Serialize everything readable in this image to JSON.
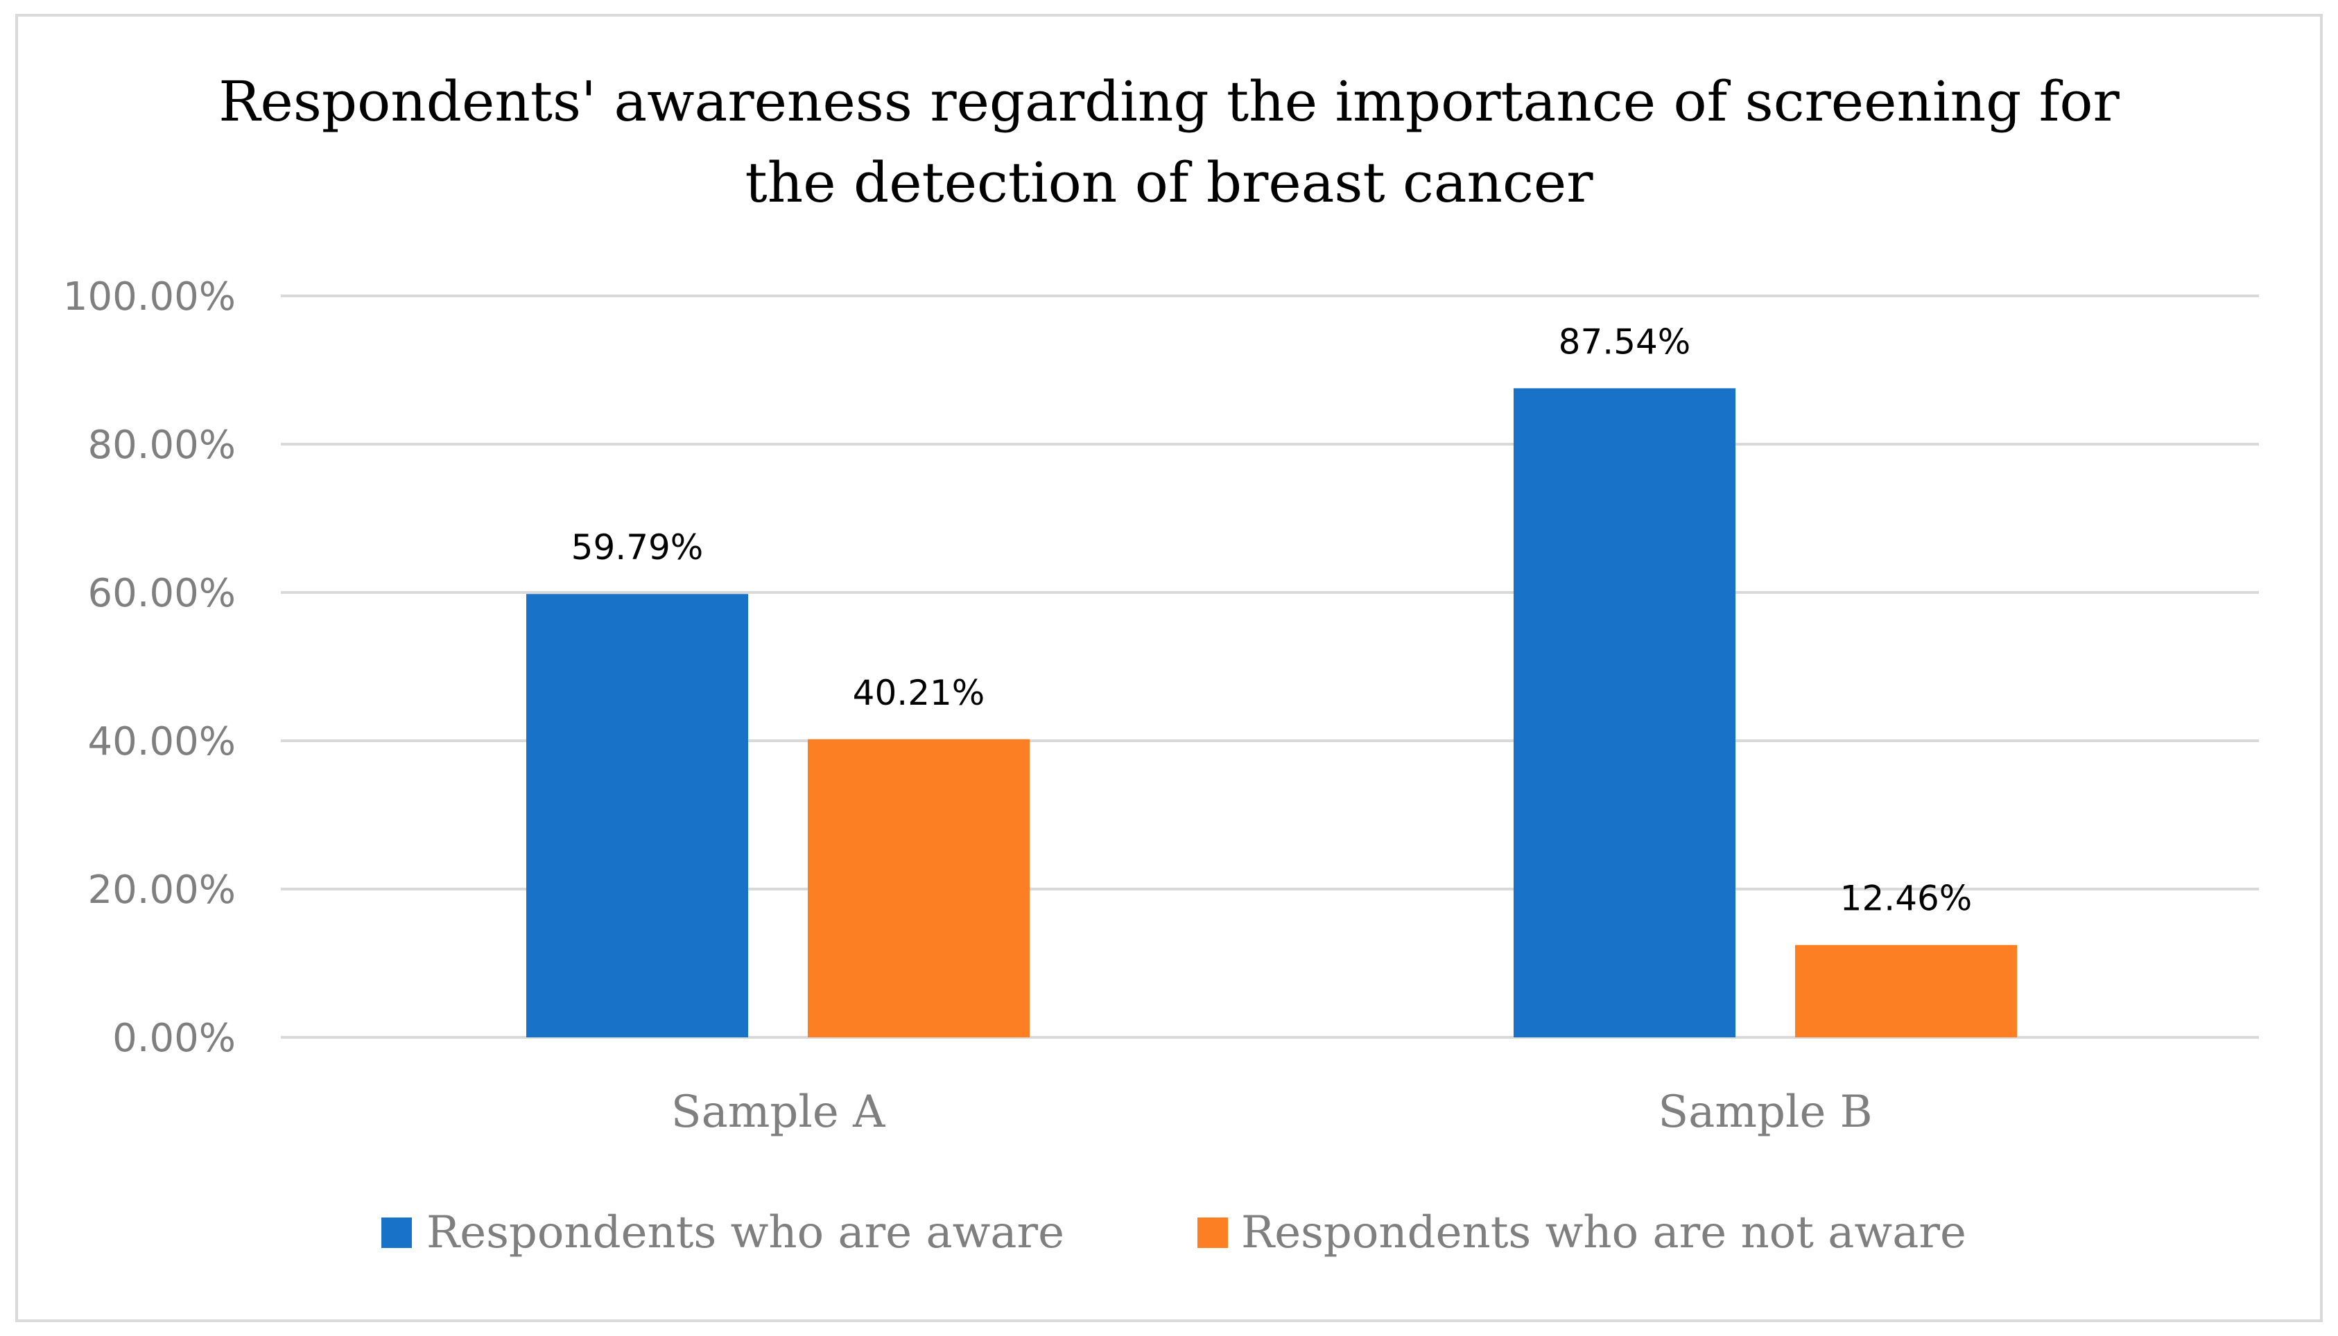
{
  "chart_data": {
    "type": "bar",
    "title": [
      "Respondents' awareness regarding the importance of screening for",
      "the detection of breast cancer"
    ],
    "categories": [
      "Sample A",
      "Sample B"
    ],
    "series": [
      {
        "name": "Respondents who are aware",
        "values": [
          59.79,
          87.54
        ],
        "labels": [
          "59.79%",
          "87.54%"
        ],
        "color": "#1872c8"
      },
      {
        "name": "Respondents who are not aware",
        "values": [
          40.21,
          12.46
        ],
        "labels": [
          "40.21%",
          "12.46%"
        ],
        "color": "#fd7f24"
      }
    ],
    "ylim": [
      0,
      100
    ],
    "yticks": [
      0,
      20,
      40,
      60,
      80,
      100
    ],
    "ytick_labels": [
      "0.00%",
      "20.00%",
      "40.00%",
      "60.00%",
      "80.00%",
      "100.00%"
    ],
    "xlabel": "",
    "ylabel": "",
    "grid": true,
    "legend_position": "bottom",
    "gridline_color": "#d9d9d9"
  }
}
